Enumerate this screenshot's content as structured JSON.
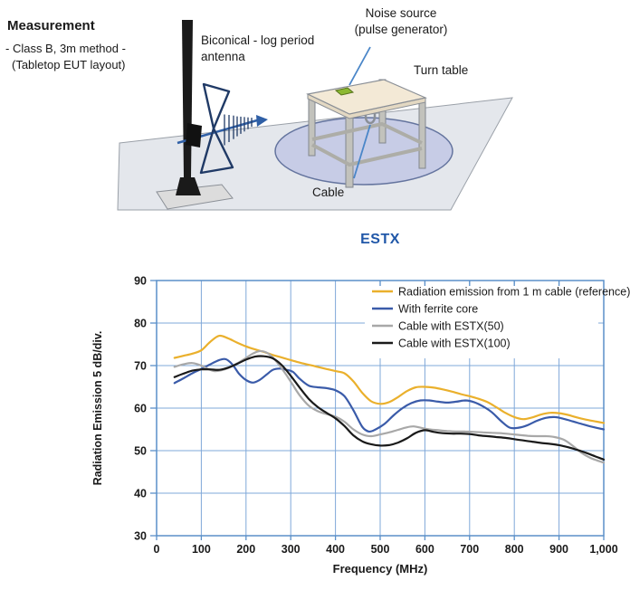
{
  "diagram": {
    "title": "Measurement",
    "subtitle1": "- Class B, 3m method -",
    "subtitle2": "(Tabletop EUT layout)",
    "antenna_label_line1": "Biconical - log period",
    "antenna_label_line2": "antenna",
    "noise_label_line1": "Noise source",
    "noise_label_line2": "(pulse generator)",
    "turntable_label": "Turn table",
    "cable_label": "Cable"
  },
  "section_title": "ESTX",
  "colors": {
    "grid": "#7fa8d9",
    "axis": "#5a8fc8",
    "series_reference": "#eab02c",
    "series_ferrite": "#3a5ba9",
    "series_estx50": "#a8a8a8",
    "series_estx100": "#1a1a1a",
    "heading_blue": "#2057a8"
  },
  "chart_data": {
    "type": "line",
    "title": "ESTX",
    "xlabel": "Frequency (MHz)",
    "ylabel": "Radiation Emission 5 dB/div.",
    "xlim": [
      0,
      1000
    ],
    "ylim": [
      30,
      90
    ],
    "grid": true,
    "legend_position": "top-right",
    "x_tick_labels": [
      "0",
      "100",
      "200",
      "300",
      "400",
      "500",
      "600",
      "700",
      "800",
      "900",
      "1,000"
    ],
    "x_tick_values": [
      0,
      100,
      200,
      300,
      400,
      500,
      600,
      700,
      800,
      900,
      1000
    ],
    "y_tick_values": [
      90,
      80,
      70,
      60,
      50,
      40,
      30
    ],
    "top_minor_tick_values": [
      500,
      600,
      700,
      800,
      900
    ],
    "series": [
      {
        "name": "Radiation emission from 1 m cable (reference)",
        "color": "#eab02c",
        "points": [
          [
            40,
            71.8
          ],
          [
            60,
            72.3
          ],
          [
            80,
            72.8
          ],
          [
            100,
            73.6
          ],
          [
            120,
            75.6
          ],
          [
            140,
            77
          ],
          [
            160,
            76.4
          ],
          [
            180,
            75.4
          ],
          [
            200,
            74.5
          ],
          [
            220,
            73.8
          ],
          [
            240,
            73.2
          ],
          [
            260,
            72.5
          ],
          [
            280,
            71.9
          ],
          [
            300,
            71.3
          ],
          [
            320,
            70.7
          ],
          [
            340,
            70.2
          ],
          [
            360,
            69.7
          ],
          [
            380,
            69.2
          ],
          [
            400,
            68.7
          ],
          [
            420,
            68.2
          ],
          [
            440,
            66.3
          ],
          [
            460,
            63.6
          ],
          [
            480,
            61.6
          ],
          [
            500,
            61
          ],
          [
            520,
            61.4
          ],
          [
            540,
            62.6
          ],
          [
            560,
            64
          ],
          [
            580,
            64.9
          ],
          [
            600,
            65
          ],
          [
            620,
            64.8
          ],
          [
            640,
            64.4
          ],
          [
            660,
            63.9
          ],
          [
            680,
            63.3
          ],
          [
            700,
            62.8
          ],
          [
            720,
            62.2
          ],
          [
            740,
            61.4
          ],
          [
            760,
            60.2
          ],
          [
            780,
            58.9
          ],
          [
            800,
            57.9
          ],
          [
            820,
            57.4
          ],
          [
            840,
            57.8
          ],
          [
            860,
            58.5
          ],
          [
            880,
            58.9
          ],
          [
            900,
            58.8
          ],
          [
            920,
            58.4
          ],
          [
            940,
            57.8
          ],
          [
            960,
            57.3
          ],
          [
            980,
            56.9
          ],
          [
            1000,
            56.5
          ]
        ]
      },
      {
        "name": "With ferrite core",
        "color": "#3a5ba9",
        "points": [
          [
            40,
            65.9
          ],
          [
            60,
            67
          ],
          [
            80,
            68.2
          ],
          [
            100,
            69.2
          ],
          [
            120,
            70.3
          ],
          [
            140,
            71.3
          ],
          [
            155,
            71.5
          ],
          [
            170,
            70.2
          ],
          [
            185,
            68
          ],
          [
            200,
            66.6
          ],
          [
            215,
            66
          ],
          [
            230,
            66.6
          ],
          [
            245,
            67.8
          ],
          [
            260,
            69
          ],
          [
            275,
            69.3
          ],
          [
            290,
            69
          ],
          [
            305,
            68.5
          ],
          [
            320,
            66.9
          ],
          [
            340,
            65.3
          ],
          [
            360,
            64.9
          ],
          [
            380,
            64.7
          ],
          [
            400,
            64.2
          ],
          [
            420,
            62.8
          ],
          [
            440,
            59.5
          ],
          [
            460,
            55.6
          ],
          [
            475,
            54.5
          ],
          [
            490,
            55
          ],
          [
            510,
            56.3
          ],
          [
            530,
            58.3
          ],
          [
            550,
            60
          ],
          [
            570,
            61.2
          ],
          [
            590,
            61.8
          ],
          [
            610,
            61.8
          ],
          [
            630,
            61.5
          ],
          [
            650,
            61.3
          ],
          [
            670,
            61.5
          ],
          [
            690,
            61.8
          ],
          [
            710,
            61.4
          ],
          [
            730,
            60.4
          ],
          [
            750,
            59
          ],
          [
            770,
            57
          ],
          [
            790,
            55.4
          ],
          [
            810,
            55.4
          ],
          [
            830,
            56
          ],
          [
            850,
            57
          ],
          [
            870,
            57.7
          ],
          [
            890,
            57.9
          ],
          [
            910,
            57.5
          ],
          [
            930,
            56.9
          ],
          [
            950,
            56.3
          ],
          [
            970,
            55.7
          ],
          [
            1000,
            55
          ]
        ]
      },
      {
        "name": "Cable with ESTX(50)",
        "color": "#a8a8a8",
        "points": [
          [
            40,
            69.7
          ],
          [
            60,
            70.3
          ],
          [
            80,
            70.6
          ],
          [
            100,
            70
          ],
          [
            115,
            69.2
          ],
          [
            130,
            68.7
          ],
          [
            145,
            68.9
          ],
          [
            160,
            69.4
          ],
          [
            180,
            70.5
          ],
          [
            200,
            71.8
          ],
          [
            215,
            72.8
          ],
          [
            230,
            73.4
          ],
          [
            245,
            73.1
          ],
          [
            260,
            71.9
          ],
          [
            275,
            70
          ],
          [
            290,
            67.8
          ],
          [
            305,
            65.4
          ],
          [
            320,
            63
          ],
          [
            340,
            60.6
          ],
          [
            360,
            59.3
          ],
          [
            380,
            58.6
          ],
          [
            400,
            58
          ],
          [
            420,
            56.8
          ],
          [
            440,
            55
          ],
          [
            460,
            53.8
          ],
          [
            480,
            53.4
          ],
          [
            500,
            53.8
          ],
          [
            520,
            54.3
          ],
          [
            540,
            54.9
          ],
          [
            560,
            55.5
          ],
          [
            575,
            55.7
          ],
          [
            590,
            55.4
          ],
          [
            610,
            55
          ],
          [
            630,
            54.8
          ],
          [
            650,
            54.6
          ],
          [
            670,
            54.5
          ],
          [
            690,
            54.5
          ],
          [
            710,
            54.4
          ],
          [
            730,
            54.3
          ],
          [
            750,
            54.2
          ],
          [
            770,
            54.1
          ],
          [
            790,
            53.9
          ],
          [
            810,
            53.7
          ],
          [
            830,
            53.5
          ],
          [
            850,
            53.4
          ],
          [
            870,
            53.4
          ],
          [
            890,
            53.2
          ],
          [
            910,
            52.6
          ],
          [
            930,
            51.2
          ],
          [
            950,
            49.5
          ],
          [
            970,
            48.3
          ],
          [
            985,
            47.7
          ],
          [
            1000,
            47.2
          ]
        ]
      },
      {
        "name": "Cable with ESTX(100)",
        "color": "#1a1a1a",
        "points": [
          [
            40,
            67.3
          ],
          [
            60,
            68.1
          ],
          [
            80,
            68.8
          ],
          [
            100,
            69.1
          ],
          [
            120,
            69.1
          ],
          [
            140,
            69
          ],
          [
            160,
            69.5
          ],
          [
            180,
            70.4
          ],
          [
            200,
            71.4
          ],
          [
            220,
            72.1
          ],
          [
            240,
            72.2
          ],
          [
            260,
            71.7
          ],
          [
            280,
            70.1
          ],
          [
            300,
            67.6
          ],
          [
            320,
            64.8
          ],
          [
            340,
            62.2
          ],
          [
            360,
            60.3
          ],
          [
            380,
            58.9
          ],
          [
            400,
            57.6
          ],
          [
            420,
            55.8
          ],
          [
            440,
            53.6
          ],
          [
            460,
            52.2
          ],
          [
            480,
            51.5
          ],
          [
            500,
            51.2
          ],
          [
            520,
            51.3
          ],
          [
            540,
            51.9
          ],
          [
            560,
            52.9
          ],
          [
            580,
            54.2
          ],
          [
            600,
            54.8
          ],
          [
            620,
            54.4
          ],
          [
            640,
            54.1
          ],
          [
            660,
            54
          ],
          [
            680,
            54
          ],
          [
            700,
            53.9
          ],
          [
            720,
            53.6
          ],
          [
            740,
            53.4
          ],
          [
            760,
            53.2
          ],
          [
            780,
            53
          ],
          [
            800,
            52.7
          ],
          [
            820,
            52.4
          ],
          [
            840,
            52.1
          ],
          [
            860,
            51.8
          ],
          [
            880,
            51.6
          ],
          [
            900,
            51.3
          ],
          [
            920,
            50.8
          ],
          [
            940,
            50.2
          ],
          [
            960,
            49.5
          ],
          [
            980,
            48.7
          ],
          [
            1000,
            47.9
          ]
        ]
      }
    ]
  }
}
